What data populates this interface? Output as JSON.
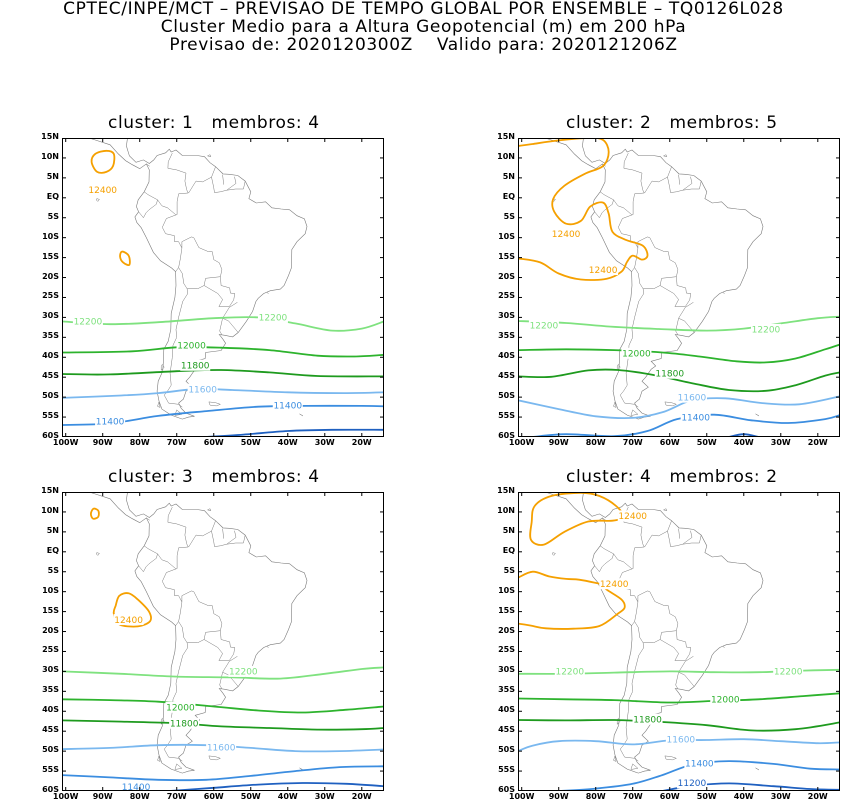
{
  "header": {
    "line1": "CPTEC/INPE/MCT – PREVISAO DE TEMPO GLOBAL POR ENSEMBLE – TQ0126L028",
    "line2": "Cluster Medio para a Altura Geopotencial (m) em 200 hPa",
    "line3": "Previsao de: 2020120300Z    Valido para: 2020121206Z"
  },
  "axes": {
    "lat_labels": [
      "15N",
      "10N",
      "5N",
      "EQ",
      "5S",
      "10S",
      "15S",
      "20S",
      "25S",
      "30S",
      "35S",
      "40S",
      "45S",
      "50S",
      "55S",
      "60S"
    ],
    "lon_labels": [
      "100W",
      "90W",
      "80W",
      "70W",
      "60W",
      "50W",
      "40W",
      "30W",
      "20W"
    ]
  },
  "colors": {
    "12400": "#f5a000",
    "12200": "#7fe27f",
    "12000": "#2db32d",
    "11800": "#1e9a1e",
    "11600": "#7ab8ef",
    "11400": "#3b8de0",
    "11200": "#1f60c0",
    "coast": "#7a7a7a"
  },
  "panels": [
    {
      "title": "cluster: 1   membros: 4",
      "contour_labels": [
        {
          "text": "12400",
          "level": "12400",
          "lon": -90,
          "lat": 2
        },
        {
          "text": "12200",
          "level": "12200",
          "lon": -94,
          "lat": -31
        },
        {
          "text": "12200",
          "level": "12200",
          "lon": -44,
          "lat": -30
        },
        {
          "text": "12000",
          "level": "12000",
          "lon": -66,
          "lat": -37
        },
        {
          "text": "11800",
          "level": "11800",
          "lon": -65,
          "lat": -42
        },
        {
          "text": "11600",
          "level": "11600",
          "lon": -63,
          "lat": -48
        },
        {
          "text": "11400",
          "level": "11400",
          "lon": -88,
          "lat": -56
        },
        {
          "text": "11400",
          "level": "11400",
          "lon": -40,
          "lat": -52
        }
      ]
    },
    {
      "title": "cluster: 2   membros: 5",
      "contour_labels": [
        {
          "text": "12400",
          "level": "12400",
          "lon": -88,
          "lat": -9
        },
        {
          "text": "12400",
          "level": "12400",
          "lon": -78,
          "lat": -18
        },
        {
          "text": "12200",
          "level": "12200",
          "lon": -94,
          "lat": -32
        },
        {
          "text": "12200",
          "level": "12200",
          "lon": -34,
          "lat": -33
        },
        {
          "text": "12000",
          "level": "12000",
          "lon": -69,
          "lat": -39
        },
        {
          "text": "11800",
          "level": "11800",
          "lon": -60,
          "lat": -44
        },
        {
          "text": "11600",
          "level": "11600",
          "lon": -54,
          "lat": -50
        },
        {
          "text": "11400",
          "level": "11400",
          "lon": -53,
          "lat": -55
        }
      ]
    },
    {
      "title": "cluster: 3   membros: 4",
      "contour_labels": [
        {
          "text": "12400",
          "level": "12400",
          "lon": -83,
          "lat": -17
        },
        {
          "text": "12200",
          "level": "12200",
          "lon": -52,
          "lat": -30
        },
        {
          "text": "12000",
          "level": "12000",
          "lon": -69,
          "lat": -39
        },
        {
          "text": "11800",
          "level": "11800",
          "lon": -68,
          "lat": -43
        },
        {
          "text": "11600",
          "level": "11600",
          "lon": -58,
          "lat": -49
        },
        {
          "text": "11400",
          "level": "11400",
          "lon": -81,
          "lat": -59
        }
      ]
    },
    {
      "title": "cluster: 4   membros: 2",
      "contour_labels": [
        {
          "text": "12400",
          "level": "12400",
          "lon": -70,
          "lat": 9
        },
        {
          "text": "12400",
          "level": "12400",
          "lon": -75,
          "lat": -8
        },
        {
          "text": "12200",
          "level": "12200",
          "lon": -87,
          "lat": -30
        },
        {
          "text": "12200",
          "level": "12200",
          "lon": -28,
          "lat": -30
        },
        {
          "text": "12000",
          "level": "12000",
          "lon": -45,
          "lat": -37
        },
        {
          "text": "11800",
          "level": "11800",
          "lon": -66,
          "lat": -42
        },
        {
          "text": "11600",
          "level": "11600",
          "lon": -57,
          "lat": -47
        },
        {
          "text": "11400",
          "level": "11400",
          "lon": -52,
          "lat": -53
        },
        {
          "text": "11200",
          "level": "11200",
          "lon": -54,
          "lat": -58
        }
      ]
    }
  ]
}
